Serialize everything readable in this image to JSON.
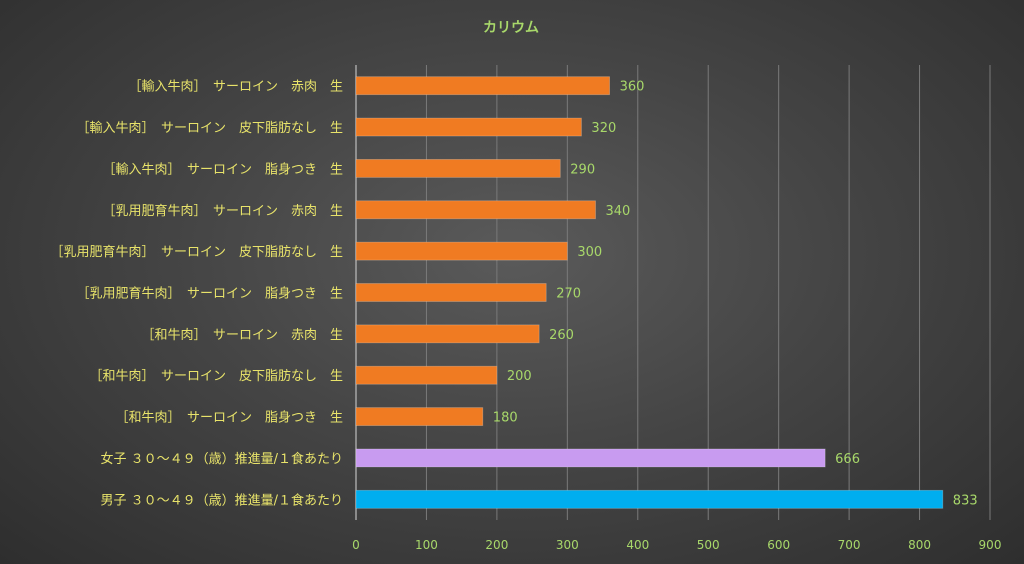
{
  "chart_data": {
    "type": "bar",
    "orientation": "horizontal",
    "title": "カリウム",
    "categories": [
      "［輸入牛肉］　サーロイン　赤肉　生",
      "［輸入牛肉］　サーロイン　皮下脂肪なし　生",
      "［輸入牛肉］　サーロイン　脂身つき　生",
      "［乳用肥育牛肉］　サーロイン　赤肉　生",
      "［乳用肥育牛肉］　サーロイン　皮下脂肪なし　生",
      "［乳用肥育牛肉］　サーロイン　脂身つき　生",
      "［和牛肉］　サーロイン　赤肉　生",
      "［和牛肉］　サーロイン　皮下脂肪なし　生",
      "［和牛肉］　サーロイン　脂身つき　生",
      "女子 ３０～４９（歳）推進量/１食あたり",
      "男子 ３０～４９（歳）推進量/１食あたり"
    ],
    "values": [
      360,
      320,
      290,
      340,
      300,
      270,
      260,
      200,
      180,
      666,
      833
    ],
    "bar_colors": [
      "#F07B22",
      "#F07B22",
      "#F07B22",
      "#F07B22",
      "#F07B22",
      "#F07B22",
      "#F07B22",
      "#F07B22",
      "#F07B22",
      "#C89BF0",
      "#00AEEF"
    ],
    "xlim": [
      0,
      900
    ],
    "xticks": [
      0,
      100,
      200,
      300,
      400,
      500,
      600,
      700,
      800,
      900
    ],
    "grid": true,
    "legend": "none"
  },
  "colors": {
    "title": "#A8D86A",
    "category_label": "#E8E36A",
    "value_label": "#A8D86A",
    "tick_label": "#A8D86A",
    "gridline": "#7a7a7a"
  }
}
